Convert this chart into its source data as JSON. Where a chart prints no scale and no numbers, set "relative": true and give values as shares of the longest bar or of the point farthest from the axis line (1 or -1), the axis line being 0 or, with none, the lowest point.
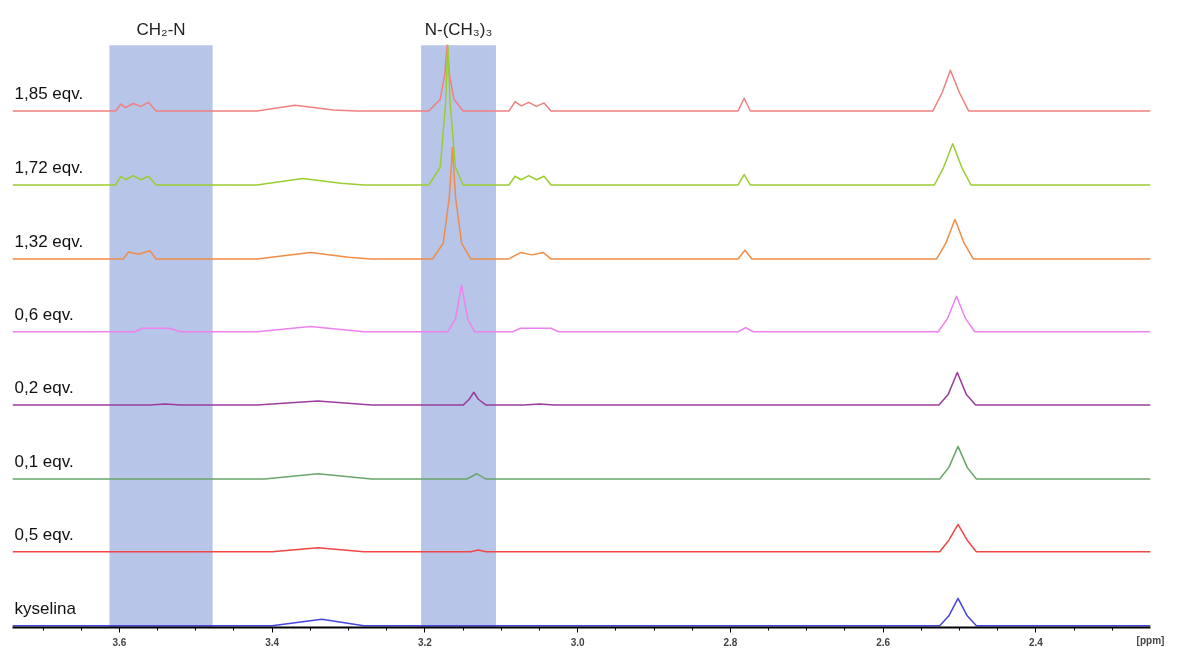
{
  "chart_data": {
    "type": "line",
    "relative": true,
    "xlabel": "[ppm]",
    "xlim": [
      3.74,
      2.25
    ],
    "xticks": [
      {
        "value": 3.7,
        "label": null
      },
      {
        "value": 3.65,
        "label": null
      },
      3.6,
      {
        "value": 3.55,
        "label": null
      },
      {
        "value": 3.5,
        "label": null
      },
      {
        "value": 3.45,
        "label": null
      },
      3.4,
      {
        "value": 3.35,
        "label": null
      },
      {
        "value": 3.3,
        "label": null
      },
      {
        "value": 3.25,
        "label": null
      },
      3.2,
      {
        "value": 3.15,
        "label": null
      },
      {
        "value": 3.1,
        "label": null
      },
      {
        "value": 3.05,
        "label": null
      },
      {
        "value": 3.0,
        "label": "3.0"
      },
      {
        "value": 2.95,
        "label": null
      },
      {
        "value": 2.9,
        "label": null
      },
      {
        "value": 2.85,
        "label": null
      },
      2.8,
      {
        "value": 2.75,
        "label": null
      },
      {
        "value": 2.7,
        "label": null
      },
      {
        "value": 2.65,
        "label": null
      },
      2.6,
      {
        "value": 2.55,
        "label": null
      },
      {
        "value": 2.5,
        "label": null
      },
      {
        "value": 2.45,
        "label": null
      },
      2.4,
      {
        "value": 2.35,
        "label": null
      },
      {
        "value": 2.3,
        "label": null
      }
    ],
    "grid": false,
    "legend": false,
    "marker": "none",
    "line_style": "solid",
    "bands": [
      {
        "axis": "x",
        "from": 3.613,
        "to": 3.478,
        "label": "CH₂-N",
        "color": "#b6c5e8"
      },
      {
        "axis": "x",
        "from": 3.205,
        "to": 3.107,
        "label": "N-(CH₃)₃",
        "color": "#b6c5e8"
      }
    ],
    "series": [
      {
        "name": "1,85 eqv.",
        "color": "#f08080",
        "x": [
          3.74,
          3.605,
          3.598,
          3.592,
          3.582,
          3.572,
          3.562,
          3.552,
          3.42,
          3.37,
          3.32,
          3.29,
          3.195,
          3.18,
          3.174,
          3.171,
          3.168,
          3.162,
          3.15,
          3.09,
          3.082,
          3.074,
          3.064,
          3.054,
          3.044,
          3.035,
          2.79,
          2.782,
          2.774,
          2.535,
          2.523,
          2.512,
          2.5,
          2.488,
          2.25
        ],
        "values": [
          0.887,
          0.887,
          0.899,
          0.893,
          0.9,
          0.895,
          0.902,
          0.887,
          0.887,
          0.897,
          0.889,
          0.887,
          0.887,
          0.907,
          0.95,
          1.0,
          0.95,
          0.907,
          0.887,
          0.887,
          0.903,
          0.896,
          0.902,
          0.895,
          0.901,
          0.887,
          0.887,
          0.909,
          0.887,
          0.887,
          0.918,
          0.957,
          0.918,
          0.887,
          0.887
        ]
      },
      {
        "name": "1,72 eqv.",
        "color": "#9acd32",
        "x": [
          3.74,
          3.605,
          3.598,
          3.592,
          3.582,
          3.572,
          3.562,
          3.552,
          3.42,
          3.36,
          3.31,
          3.28,
          3.195,
          3.18,
          3.173,
          3.17,
          3.167,
          3.16,
          3.15,
          3.09,
          3.082,
          3.074,
          3.064,
          3.054,
          3.044,
          3.035,
          2.79,
          2.782,
          2.774,
          2.533,
          2.521,
          2.509,
          2.497,
          2.485,
          2.25
        ],
        "values": [
          0.76,
          0.76,
          0.775,
          0.769,
          0.776,
          0.769,
          0.775,
          0.76,
          0.76,
          0.771,
          0.763,
          0.76,
          0.76,
          0.79,
          0.9,
          1.0,
          0.9,
          0.79,
          0.76,
          0.76,
          0.775,
          0.769,
          0.776,
          0.769,
          0.775,
          0.76,
          0.76,
          0.778,
          0.76,
          0.76,
          0.79,
          0.831,
          0.79,
          0.76,
          0.76
        ]
      },
      {
        "name": "1,32 eqv.",
        "color": "#f08c46",
        "x": [
          3.74,
          3.595,
          3.588,
          3.575,
          3.56,
          3.552,
          3.42,
          3.35,
          3.3,
          3.27,
          3.19,
          3.176,
          3.168,
          3.164,
          3.16,
          3.152,
          3.14,
          3.09,
          3.075,
          3.06,
          3.045,
          3.035,
          2.79,
          2.781,
          2.772,
          2.53,
          2.518,
          2.506,
          2.494,
          2.482,
          2.25
        ],
        "values": [
          0.633,
          0.633,
          0.645,
          0.641,
          0.647,
          0.633,
          0.633,
          0.644,
          0.636,
          0.633,
          0.633,
          0.66,
          0.74,
          0.824,
          0.74,
          0.66,
          0.633,
          0.633,
          0.644,
          0.64,
          0.644,
          0.633,
          0.633,
          0.648,
          0.633,
          0.633,
          0.66,
          0.701,
          0.66,
          0.633,
          0.633
        ]
      },
      {
        "name": "0,6 eqv.",
        "color": "#ee82ee",
        "x": [
          3.74,
          3.58,
          3.57,
          3.535,
          3.52,
          3.42,
          3.35,
          3.28,
          3.17,
          3.16,
          3.152,
          3.144,
          3.135,
          3.085,
          3.075,
          3.035,
          3.025,
          2.79,
          2.78,
          2.77,
          2.528,
          2.516,
          2.504,
          2.492,
          2.48,
          2.25
        ],
        "values": [
          0.508,
          0.508,
          0.514,
          0.514,
          0.508,
          0.508,
          0.517,
          0.508,
          0.508,
          0.53,
          0.588,
          0.53,
          0.508,
          0.508,
          0.514,
          0.514,
          0.508,
          0.508,
          0.515,
          0.508,
          0.508,
          0.53,
          0.569,
          0.53,
          0.508,
          0.508
        ]
      },
      {
        "name": "0,2 eqv.",
        "color": "#9b3c9b",
        "x": [
          3.74,
          3.56,
          3.54,
          3.52,
          3.42,
          3.34,
          3.27,
          3.15,
          3.142,
          3.136,
          3.13,
          3.12,
          3.07,
          3.05,
          3.03,
          2.527,
          2.515,
          2.503,
          2.491,
          2.479,
          2.25
        ],
        "values": [
          0.382,
          0.382,
          0.384,
          0.382,
          0.382,
          0.389,
          0.382,
          0.382,
          0.392,
          0.404,
          0.392,
          0.382,
          0.382,
          0.384,
          0.382,
          0.382,
          0.4,
          0.438,
          0.4,
          0.382,
          0.382
        ]
      },
      {
        "name": "0,1 eqv.",
        "color": "#6aa56a",
        "x": [
          3.74,
          3.41,
          3.34,
          3.27,
          3.145,
          3.132,
          3.12,
          2.526,
          2.514,
          2.502,
          2.49,
          2.478,
          2.25
        ],
        "values": [
          0.255,
          0.255,
          0.264,
          0.255,
          0.255,
          0.264,
          0.255,
          0.255,
          0.275,
          0.311,
          0.275,
          0.255,
          0.255
        ]
      },
      {
        "name": "0,5 eqv.",
        "color": "#f04646",
        "x": [
          3.74,
          3.4,
          3.34,
          3.28,
          3.14,
          3.13,
          3.12,
          2.526,
          2.514,
          2.502,
          2.49,
          2.478,
          2.25
        ],
        "values": [
          0.13,
          0.13,
          0.137,
          0.13,
          0.13,
          0.133,
          0.13,
          0.13,
          0.15,
          0.177,
          0.15,
          0.13,
          0.13
        ]
      },
      {
        "name": "kyselina",
        "color": "#4646dc",
        "x": [
          3.74,
          3.4,
          3.335,
          3.28,
          2.526,
          2.514,
          2.502,
          2.49,
          2.478,
          2.25
        ],
        "values": [
          0.003,
          0.003,
          0.014,
          0.003,
          0.003,
          0.02,
          0.05,
          0.02,
          0.003,
          0.003
        ]
      }
    ]
  }
}
